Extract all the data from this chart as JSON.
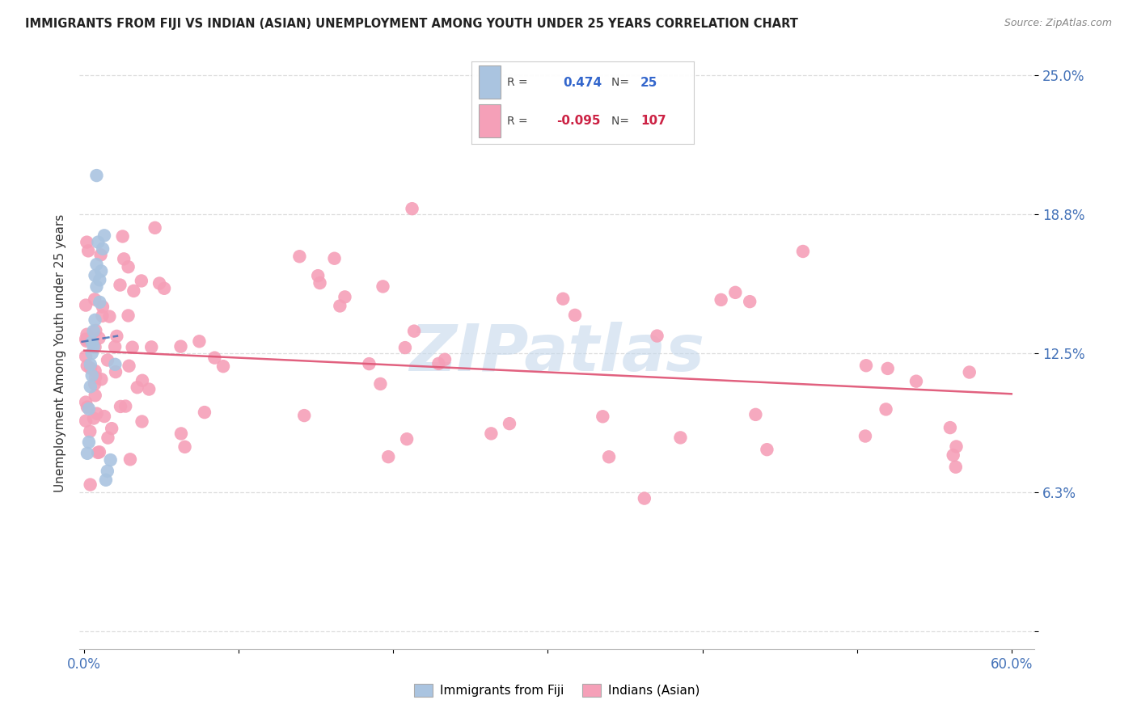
{
  "title": "IMMIGRANTS FROM FIJI VS INDIAN (ASIAN) UNEMPLOYMENT AMONG YOUTH UNDER 25 YEARS CORRELATION CHART",
  "source": "Source: ZipAtlas.com",
  "ylabel": "Unemployment Among Youth under 25 years",
  "xlim": [
    0.0,
    0.6
  ],
  "ylim": [
    0.0,
    0.25
  ],
  "ytick_positions": [
    0.0,
    0.0625,
    0.125,
    0.1875,
    0.25
  ],
  "yticklabels": [
    "",
    "6.3%",
    "12.5%",
    "18.8%",
    "25.0%"
  ],
  "fiji_R": 0.474,
  "fiji_N": 25,
  "indian_R": -0.095,
  "indian_N": 107,
  "fiji_color": "#aac4e0",
  "indian_color": "#f5a0b8",
  "fiji_line_color": "#4472b8",
  "indian_line_color": "#e05878",
  "watermark": "ZIPatlas",
  "watermark_color": "#c5d8ec",
  "title_color": "#222222",
  "source_color": "#888888",
  "ylabel_color": "#333333",
  "ytick_color": "#4472b8",
  "xtick_color": "#4472b8",
  "grid_color": "#dddddd",
  "background_color": "#ffffff"
}
